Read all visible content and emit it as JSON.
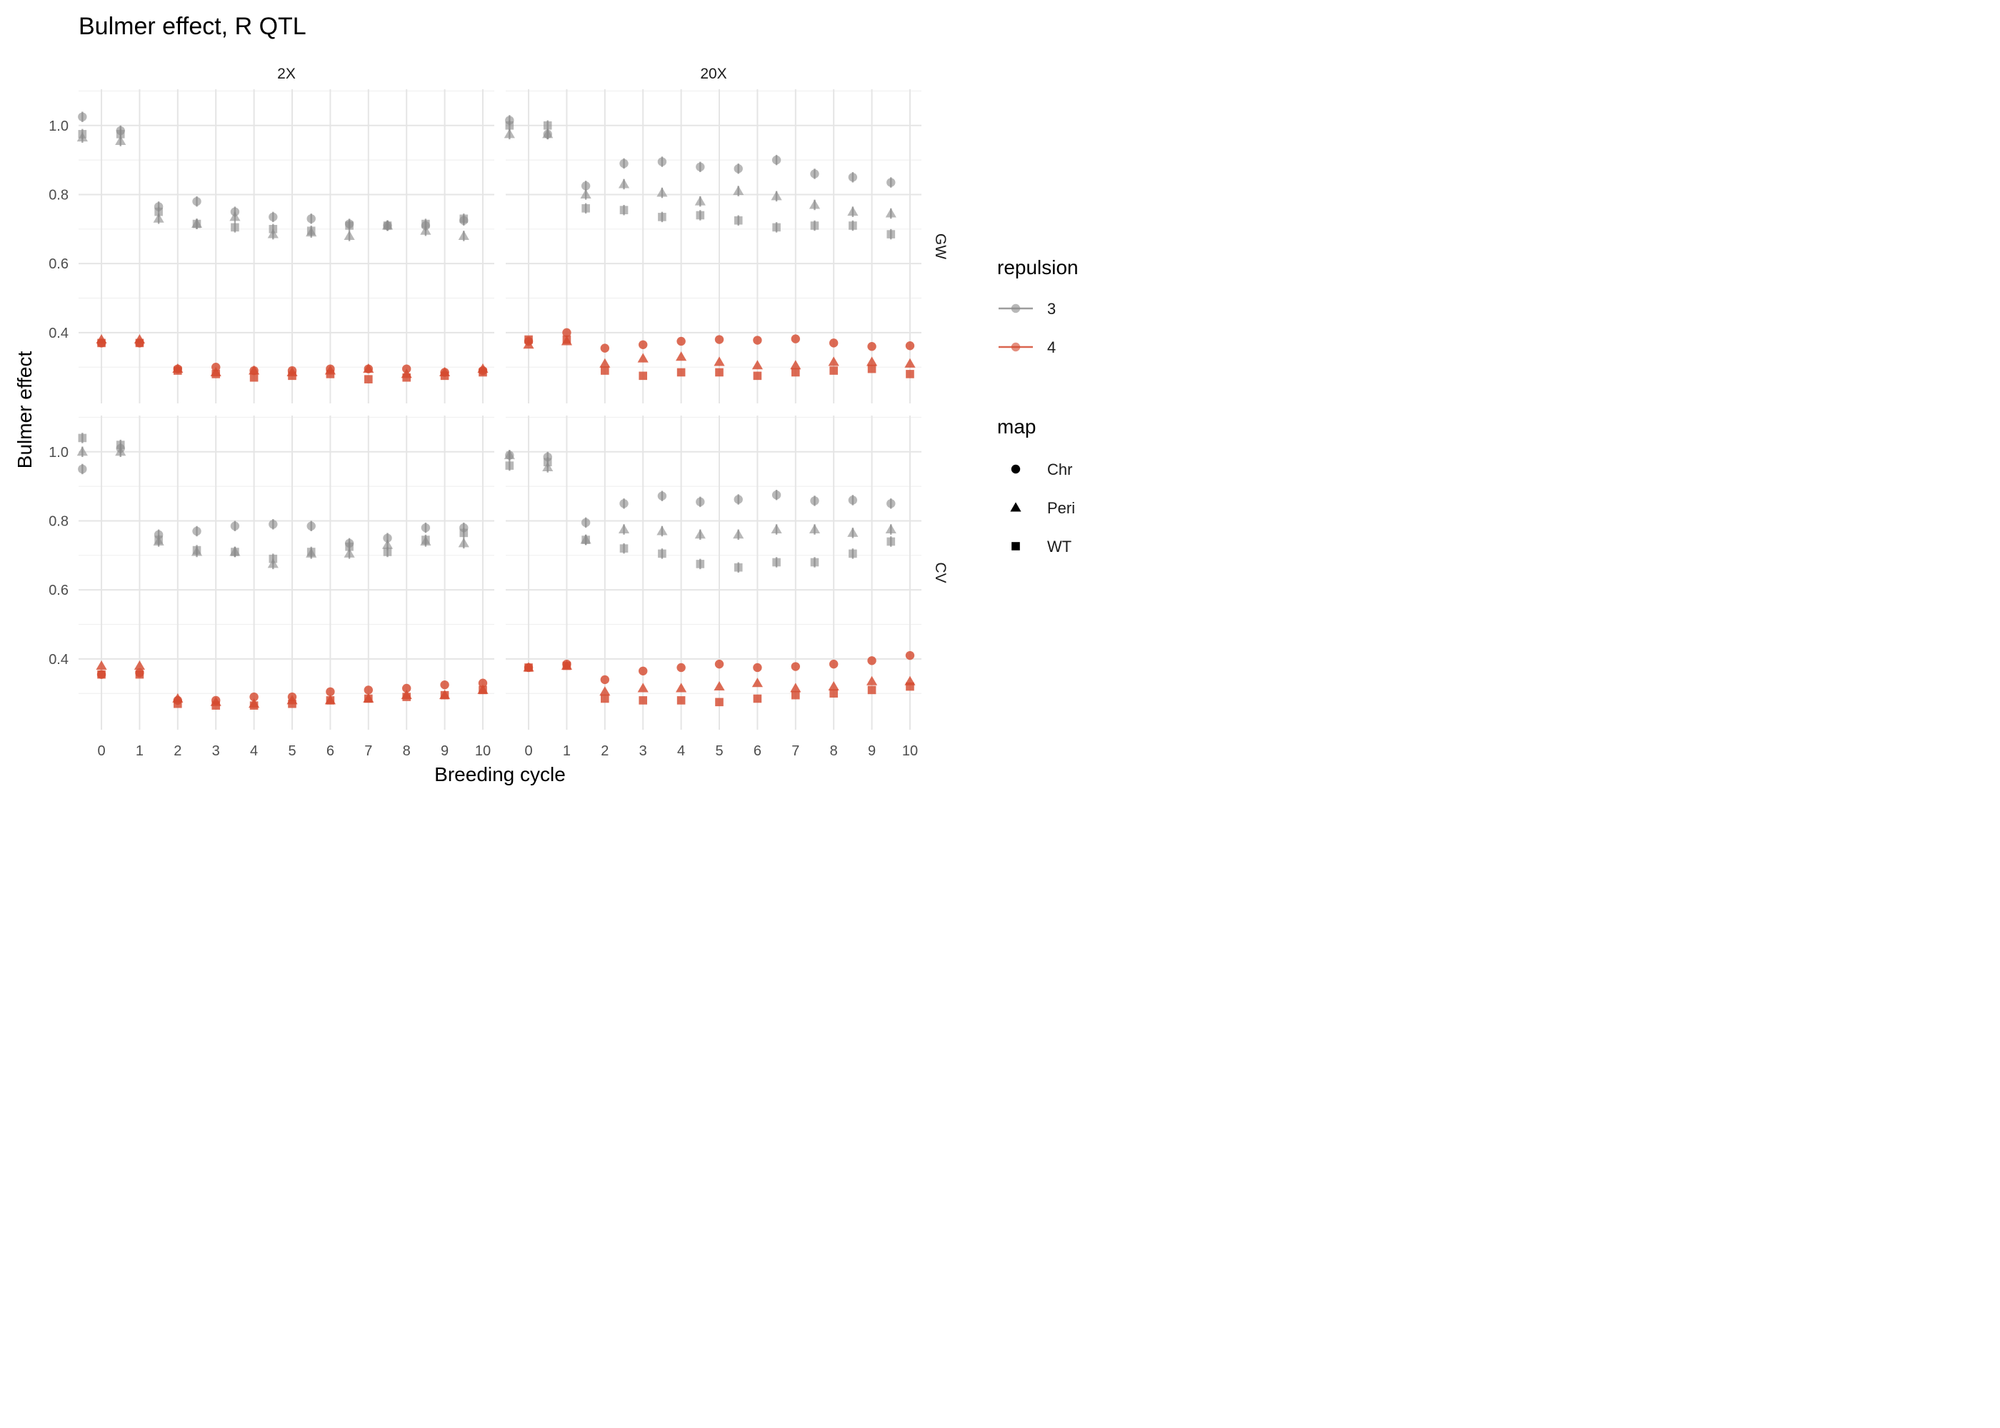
{
  "chart_data": {
    "type": "scatter",
    "title": "Bulmer effect, R QTL",
    "xlabel": "Breeding cycle",
    "ylabel": "Bulmer effect",
    "x_ticks": [
      0,
      1,
      2,
      3,
      4,
      5,
      6,
      7,
      8,
      9,
      10
    ],
    "x_tick_labels": [
      "0",
      "1",
      "2",
      "3",
      "4",
      "5",
      "6",
      "7",
      "8",
      "9",
      "10"
    ],
    "y_ticks": [
      0.4,
      0.6,
      0.8,
      1.0
    ],
    "y_tick_labels": [
      "0.4",
      "0.6",
      "0.8",
      "1.0"
    ],
    "xlim": [
      -0.6,
      10.3
    ],
    "ylim": [
      0.195,
      1.105
    ],
    "grid": true,
    "facet_columns": [
      "2X",
      "20X"
    ],
    "facet_rows": [
      "GW",
      "CV"
    ],
    "legend": {
      "placement": "right",
      "repulsion": {
        "title": "repulsion",
        "entries": [
          {
            "label": "3",
            "color": "#8c8c8c"
          },
          {
            "label": "4",
            "color": "#d44a30"
          }
        ]
      },
      "map": {
        "title": "map",
        "entries": [
          {
            "label": "Chr",
            "shape": "circle"
          },
          {
            "label": "Peri",
            "shape": "triangle"
          },
          {
            "label": "WT",
            "shape": "square"
          }
        ]
      }
    },
    "x_positions": {
      "repulsion_3": [
        -0.5,
        0.5,
        1.5,
        2.5,
        3.5,
        4.5,
        5.5,
        6.5,
        7.5,
        8.5,
        9.5
      ],
      "repulsion_4": [
        0,
        1,
        2,
        3,
        4,
        5,
        6,
        7,
        8,
        9,
        10
      ]
    },
    "panels": [
      {
        "col": "2X",
        "row": "GW",
        "series": [
          {
            "repulsion": "3",
            "map": "Chr",
            "values": [
              1.025,
              0.985,
              0.765,
              0.78,
              0.75,
              0.735,
              0.73,
              0.715,
              0.71,
              0.71,
              0.725
            ]
          },
          {
            "repulsion": "3",
            "map": "Peri",
            "values": [
              0.965,
              0.955,
              0.73,
              0.715,
              0.735,
              0.685,
              0.69,
              0.68,
              0.71,
              0.695,
              0.68
            ]
          },
          {
            "repulsion": "3",
            "map": "WT",
            "values": [
              0.975,
              0.975,
              0.75,
              0.715,
              0.705,
              0.7,
              0.695,
              0.71,
              0.71,
              0.715,
              0.73
            ]
          },
          {
            "repulsion": "4",
            "map": "Chr",
            "values": [
              0.37,
              0.37,
              0.295,
              0.3,
              0.29,
              0.29,
              0.295,
              0.295,
              0.295,
              0.285,
              0.29
            ]
          },
          {
            "repulsion": "4",
            "map": "Peri",
            "values": [
              0.38,
              0.38,
              0.295,
              0.285,
              0.29,
              0.285,
              0.29,
              0.295,
              0.28,
              0.285,
              0.295
            ]
          },
          {
            "repulsion": "4",
            "map": "WT",
            "values": [
              0.37,
              0.37,
              0.29,
              0.28,
              0.27,
              0.275,
              0.28,
              0.265,
              0.27,
              0.275,
              0.285
            ]
          }
        ]
      },
      {
        "col": "20X",
        "row": "GW",
        "series": [
          {
            "repulsion": "3",
            "map": "Chr",
            "values": [
              1.015,
              0.975,
              0.825,
              0.89,
              0.895,
              0.88,
              0.875,
              0.9,
              0.86,
              0.85,
              0.835
            ]
          },
          {
            "repulsion": "3",
            "map": "Peri",
            "values": [
              0.975,
              0.975,
              0.8,
              0.83,
              0.805,
              0.78,
              0.81,
              0.795,
              0.77,
              0.75,
              0.745
            ]
          },
          {
            "repulsion": "3",
            "map": "WT",
            "values": [
              1.0,
              1.0,
              0.76,
              0.755,
              0.735,
              0.74,
              0.725,
              0.705,
              0.71,
              0.71,
              0.685
            ]
          },
          {
            "repulsion": "4",
            "map": "Chr",
            "values": [
              0.375,
              0.4,
              0.355,
              0.365,
              0.375,
              0.38,
              0.378,
              0.382,
              0.37,
              0.36,
              0.362
            ]
          },
          {
            "repulsion": "4",
            "map": "Peri",
            "values": [
              0.365,
              0.375,
              0.31,
              0.325,
              0.33,
              0.315,
              0.305,
              0.305,
              0.315,
              0.315,
              0.31
            ]
          },
          {
            "repulsion": "4",
            "map": "WT",
            "values": [
              0.38,
              0.38,
              0.29,
              0.275,
              0.285,
              0.285,
              0.275,
              0.285,
              0.29,
              0.295,
              0.28
            ]
          }
        ]
      },
      {
        "col": "2X",
        "row": "CV",
        "series": [
          {
            "repulsion": "3",
            "map": "Chr",
            "values": [
              0.95,
              1.01,
              0.76,
              0.77,
              0.785,
              0.79,
              0.785,
              0.735,
              0.75,
              0.78,
              0.78
            ]
          },
          {
            "repulsion": "3",
            "map": "Peri",
            "values": [
              1.0,
              1.0,
              0.74,
              0.71,
              0.71,
              0.675,
              0.705,
              0.705,
              0.73,
              0.74,
              0.735
            ]
          },
          {
            "repulsion": "3",
            "map": "WT",
            "values": [
              1.04,
              1.02,
              0.745,
              0.715,
              0.71,
              0.69,
              0.71,
              0.725,
              0.71,
              0.745,
              0.765
            ]
          },
          {
            "repulsion": "4",
            "map": "Chr",
            "values": [
              0.355,
              0.36,
              0.28,
              0.28,
              0.29,
              0.29,
              0.305,
              0.31,
              0.315,
              0.325,
              0.33
            ]
          },
          {
            "repulsion": "4",
            "map": "Peri",
            "values": [
              0.38,
              0.38,
              0.285,
              0.275,
              0.27,
              0.28,
              0.28,
              0.285,
              0.295,
              0.295,
              0.31
            ]
          },
          {
            "repulsion": "4",
            "map": "WT",
            "values": [
              0.355,
              0.355,
              0.27,
              0.265,
              0.265,
              0.27,
              0.28,
              0.285,
              0.29,
              0.295,
              0.31
            ]
          }
        ]
      },
      {
        "col": "20X",
        "row": "CV",
        "series": [
          {
            "repulsion": "3",
            "map": "Chr",
            "values": [
              0.99,
              0.985,
              0.795,
              0.85,
              0.872,
              0.855,
              0.862,
              0.875,
              0.858,
              0.86,
              0.85
            ]
          },
          {
            "repulsion": "3",
            "map": "Peri",
            "values": [
              0.99,
              0.955,
              0.745,
              0.775,
              0.77,
              0.76,
              0.76,
              0.775,
              0.775,
              0.765,
              0.775
            ]
          },
          {
            "repulsion": "3",
            "map": "WT",
            "values": [
              0.96,
              0.97,
              0.745,
              0.72,
              0.705,
              0.675,
              0.665,
              0.68,
              0.68,
              0.705,
              0.74
            ]
          },
          {
            "repulsion": "4",
            "map": "Chr",
            "values": [
              0.375,
              0.385,
              0.34,
              0.365,
              0.375,
              0.385,
              0.375,
              0.378,
              0.385,
              0.395,
              0.41
            ]
          },
          {
            "repulsion": "4",
            "map": "Peri",
            "values": [
              0.375,
              0.38,
              0.305,
              0.315,
              0.315,
              0.32,
              0.33,
              0.315,
              0.32,
              0.335,
              0.335
            ]
          },
          {
            "repulsion": "4",
            "map": "WT",
            "values": [
              0.375,
              0.38,
              0.285,
              0.28,
              0.28,
              0.275,
              0.285,
              0.295,
              0.3,
              0.31,
              0.32
            ]
          }
        ]
      }
    ]
  }
}
